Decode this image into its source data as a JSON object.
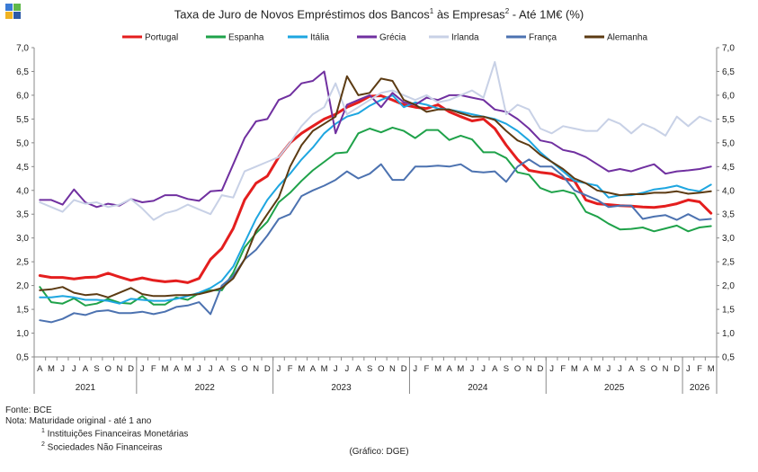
{
  "title": {
    "text": "Taxa de Juro de Novos Empréstimos  dos Bancos",
    "sup1": "1",
    "mid": " às Empresas",
    "sup2": "2",
    "end": " -  Até 1M€ (%)"
  },
  "logo": {
    "name": "dge-logo",
    "colors": [
      "#3a7bd5",
      "#5fb84a",
      "#f0b323",
      "#2d5aa8"
    ]
  },
  "footnotes": {
    "source": "Fonte: BCE",
    "note": "Nota:  Maturidade original - até 1 ano",
    "n1_mark": "1",
    "n1": " Instituições Financeiras Monetárias",
    "n2_mark": "2",
    "n2": " Sociedades Não Financeiras"
  },
  "credit": "(Gráfico: DGE)",
  "chart_data": {
    "type": "line",
    "title": "Taxa de Juro de Novos Empréstimos dos Bancos às Empresas - Até 1M€ (%)",
    "ylim": [
      0.5,
      7.0
    ],
    "yticks": [
      "0,5",
      "1,0",
      "1,5",
      "2,0",
      "2,5",
      "3,0",
      "3,5",
      "4,0",
      "4,5",
      "5,0",
      "5,5",
      "6,0",
      "6,5",
      "7,0"
    ],
    "grid": false,
    "legend_position": "top",
    "months": [
      "A",
      "M",
      "J",
      "J",
      "A",
      "S",
      "O",
      "N",
      "D",
      "J",
      "F",
      "M",
      "A",
      "M",
      "J",
      "J",
      "A",
      "S",
      "O",
      "N",
      "D",
      "J",
      "F",
      "M",
      "A",
      "M",
      "J",
      "J",
      "A",
      "S",
      "O",
      "N",
      "D",
      "J",
      "F",
      "M",
      "A",
      "M",
      "J",
      "J",
      "A",
      "S",
      "O",
      "N",
      "D",
      "J",
      "F",
      "M",
      "A",
      "M",
      "J",
      "J",
      "A",
      "S",
      "O",
      "N",
      "D",
      "J",
      "F",
      "M"
    ],
    "years": [
      {
        "label": "2021",
        "start": 0,
        "end": 9
      },
      {
        "label": "2022",
        "start": 9,
        "end": 21
      },
      {
        "label": "2023",
        "start": 21,
        "end": 33
      },
      {
        "label": "2024",
        "start": 33,
        "end": 45
      },
      {
        "label": "2025",
        "start": 45,
        "end": 57
      },
      {
        "label": "2026",
        "start": 57,
        "end": 60
      }
    ],
    "series": [
      {
        "name": "Portugal",
        "color": "#e41e1e",
        "width": 3,
        "values": [
          2.21,
          2.17,
          2.17,
          2.14,
          2.17,
          2.18,
          2.26,
          2.18,
          2.11,
          2.16,
          2.11,
          2.08,
          2.1,
          2.06,
          2.15,
          2.55,
          2.78,
          3.2,
          3.8,
          4.15,
          4.3,
          4.7,
          5.0,
          5.2,
          5.35,
          5.5,
          5.6,
          5.75,
          5.85,
          5.98,
          5.99,
          5.9,
          5.8,
          5.75,
          5.72,
          5.8,
          5.65,
          5.55,
          5.46,
          5.5,
          5.3,
          4.95,
          4.65,
          4.42,
          4.38,
          4.35,
          4.25,
          4.2,
          3.8,
          3.72,
          3.7,
          3.68,
          3.67,
          3.65,
          3.64,
          3.67,
          3.72,
          3.8,
          3.76,
          3.52
        ]
      },
      {
        "name": "Espanha",
        "color": "#1fa24a",
        "width": 2,
        "values": [
          1.97,
          1.65,
          1.62,
          1.73,
          1.58,
          1.62,
          1.72,
          1.64,
          1.62,
          1.78,
          1.6,
          1.6,
          1.75,
          1.7,
          1.84,
          1.9,
          1.9,
          2.27,
          2.8,
          3.1,
          3.34,
          3.75,
          3.95,
          4.2,
          4.42,
          4.6,
          4.78,
          4.8,
          5.2,
          5.3,
          5.22,
          5.32,
          5.25,
          5.1,
          5.27,
          5.27,
          5.06,
          5.15,
          5.07,
          4.8,
          4.8,
          4.68,
          4.38,
          4.33,
          4.05,
          3.96,
          4.0,
          3.93,
          3.55,
          3.45,
          3.3,
          3.18,
          3.19,
          3.22,
          3.14,
          3.2,
          3.26,
          3.14,
          3.22,
          3.25
        ]
      },
      {
        "name": "Itália",
        "color": "#1ea6e0",
        "width": 2,
        "values": [
          1.75,
          1.75,
          1.78,
          1.75,
          1.7,
          1.7,
          1.68,
          1.62,
          1.72,
          1.7,
          1.68,
          1.68,
          1.72,
          1.78,
          1.85,
          1.95,
          2.1,
          2.4,
          2.9,
          3.4,
          3.8,
          4.1,
          4.35,
          4.65,
          4.9,
          5.2,
          5.4,
          5.55,
          5.62,
          5.78,
          5.9,
          6.0,
          5.75,
          5.85,
          5.8,
          5.72,
          5.7,
          5.65,
          5.6,
          5.55,
          5.5,
          5.4,
          5.25,
          5.05,
          4.8,
          4.6,
          4.4,
          4.2,
          4.15,
          4.1,
          3.85,
          3.9,
          3.9,
          3.95,
          4.02,
          4.05,
          4.1,
          4.02,
          3.98,
          4.12
        ]
      },
      {
        "name": "Grécia",
        "color": "#7030a0",
        "width": 2,
        "values": [
          3.8,
          3.8,
          3.7,
          4.02,
          3.75,
          3.65,
          3.72,
          3.68,
          3.82,
          3.75,
          3.78,
          3.9,
          3.9,
          3.82,
          3.78,
          3.98,
          4.0,
          4.55,
          5.1,
          5.45,
          5.5,
          5.9,
          6.0,
          6.25,
          6.3,
          6.5,
          5.2,
          5.8,
          5.9,
          6.0,
          5.75,
          6.05,
          5.85,
          5.8,
          5.95,
          5.9,
          6.0,
          6.0,
          5.95,
          5.9,
          5.7,
          5.65,
          5.5,
          5.3,
          5.05,
          5.0,
          4.85,
          4.8,
          4.7,
          4.55,
          4.4,
          4.45,
          4.4,
          4.48,
          4.55,
          4.35,
          4.4,
          4.42,
          4.45,
          4.5
        ]
      },
      {
        "name": "Irlanda",
        "color": "#c8d1e6",
        "width": 2,
        "values": [
          3.75,
          3.65,
          3.55,
          3.8,
          3.72,
          3.75,
          3.65,
          3.7,
          3.82,
          3.62,
          3.38,
          3.52,
          3.58,
          3.7,
          3.6,
          3.5,
          3.9,
          3.85,
          4.4,
          4.5,
          4.6,
          4.7,
          5.0,
          5.35,
          5.6,
          5.75,
          6.25,
          5.6,
          5.75,
          5.9,
          6.05,
          6.1,
          6.0,
          5.9,
          6.0,
          5.85,
          5.9,
          6.0,
          6.1,
          5.95,
          6.7,
          5.6,
          5.8,
          5.7,
          5.3,
          5.2,
          5.35,
          5.3,
          5.25,
          5.25,
          5.5,
          5.4,
          5.2,
          5.4,
          5.3,
          5.15,
          5.55,
          5.35,
          5.55,
          5.45
        ]
      },
      {
        "name": "França",
        "color": "#4c72b0",
        "width": 2,
        "values": [
          1.27,
          1.23,
          1.3,
          1.42,
          1.38,
          1.46,
          1.48,
          1.42,
          1.42,
          1.45,
          1.4,
          1.45,
          1.55,
          1.58,
          1.65,
          1.4,
          2.0,
          2.2,
          2.55,
          2.75,
          3.05,
          3.4,
          3.5,
          3.88,
          4.0,
          4.1,
          4.22,
          4.4,
          4.25,
          4.35,
          4.55,
          4.22,
          4.22,
          4.5,
          4.5,
          4.52,
          4.5,
          4.55,
          4.4,
          4.38,
          4.4,
          4.18,
          4.5,
          4.65,
          4.5,
          4.5,
          4.3,
          4.0,
          3.9,
          3.8,
          3.65,
          3.68,
          3.68,
          3.4,
          3.45,
          3.48,
          3.38,
          3.5,
          3.38,
          3.4
        ]
      },
      {
        "name": "Alemanha",
        "color": "#5c3b13",
        "width": 2,
        "values": [
          1.9,
          1.92,
          1.97,
          1.85,
          1.8,
          1.82,
          1.75,
          1.85,
          1.95,
          1.82,
          1.78,
          1.78,
          1.8,
          1.8,
          1.82,
          1.88,
          1.95,
          2.15,
          2.55,
          3.15,
          3.5,
          3.85,
          4.5,
          4.95,
          5.25,
          5.4,
          5.55,
          6.4,
          6.0,
          6.05,
          6.35,
          6.3,
          5.9,
          5.8,
          5.65,
          5.7,
          5.7,
          5.62,
          5.55,
          5.55,
          5.48,
          5.25,
          5.05,
          4.95,
          4.75,
          4.6,
          4.45,
          4.25,
          4.15,
          4.0,
          3.95,
          3.9,
          3.92,
          3.92,
          3.95,
          3.95,
          3.98,
          3.93,
          3.95,
          3.98
        ]
      }
    ]
  }
}
